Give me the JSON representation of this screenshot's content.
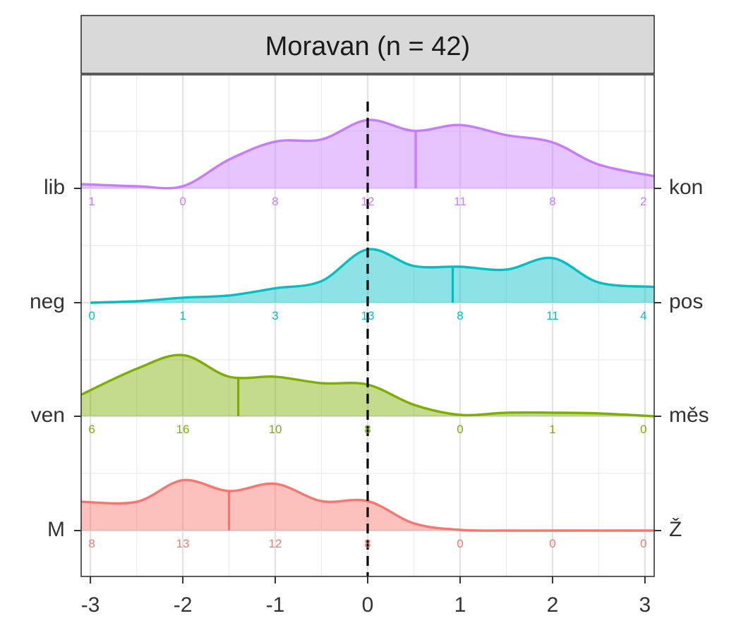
{
  "chart_data": {
    "type": "ridgeline",
    "title": "Moravan (n = 42)",
    "xlabel": "",
    "ylabel": "",
    "xlim": [
      -3.1,
      3.1
    ],
    "x_ticks": [
      "-3",
      "-2",
      "-1",
      "0",
      "1",
      "2",
      "3"
    ],
    "x_tick_values": [
      -3,
      -2,
      -1,
      0,
      1,
      2,
      3
    ],
    "reference_line_x": 0,
    "grid": true,
    "count_positions": [
      -3,
      -2,
      -1,
      0,
      1,
      2,
      3
    ],
    "series": [
      {
        "left_label": "lib",
        "right_label": "kon",
        "color": "#C77CFF",
        "counts": [
          "1",
          "0",
          "8",
          "12",
          "11",
          "8",
          "2"
        ],
        "mean": 0.52,
        "density_x": [
          -3.1,
          -2.5,
          -2.0,
          -1.5,
          -1.0,
          -0.5,
          0.0,
          0.5,
          1.0,
          1.5,
          2.0,
          2.5,
          3.1
        ],
        "density_y": [
          0.06,
          0.03,
          0.03,
          0.4,
          0.65,
          0.68,
          0.95,
          0.8,
          0.88,
          0.74,
          0.64,
          0.33,
          0.17
        ]
      },
      {
        "left_label": "neg",
        "right_label": "pos",
        "color": "#00BFC4",
        "counts": [
          "0",
          "1",
          "3",
          "13",
          "8",
          "11",
          "4"
        ],
        "mean": 0.92,
        "density_x": [
          -3.0,
          -2.5,
          -2.0,
          -1.5,
          -1.0,
          -0.5,
          0.0,
          0.5,
          1.0,
          1.5,
          2.0,
          2.5,
          3.1
        ],
        "density_y": [
          0.0,
          0.02,
          0.07,
          0.1,
          0.2,
          0.3,
          0.74,
          0.51,
          0.5,
          0.46,
          0.62,
          0.28,
          0.22
        ]
      },
      {
        "left_label": "ven",
        "right_label": "měs",
        "color": "#7CAE00",
        "counts": [
          "6",
          "16",
          "10",
          "8",
          "0",
          "1",
          "0"
        ],
        "mean": -1.4,
        "density_x": [
          -3.1,
          -2.5,
          -2.0,
          -1.5,
          -1.0,
          -0.5,
          0.0,
          0.5,
          1.0,
          1.5,
          2.0,
          2.5,
          3.1
        ],
        "density_y": [
          0.3,
          0.66,
          0.85,
          0.55,
          0.55,
          0.46,
          0.44,
          0.16,
          0.02,
          0.05,
          0.05,
          0.04,
          0.0
        ]
      },
      {
        "left_label": "M",
        "right_label": "Ž",
        "color": "#F8766D",
        "counts": [
          "8",
          "13",
          "12",
          "8",
          "0",
          "0",
          "0"
        ],
        "mean": -1.5,
        "density_x": [
          -3.1,
          -2.5,
          -2.0,
          -1.5,
          -1.0,
          -0.5,
          0.0,
          0.5,
          1.0,
          1.5,
          2.0,
          2.5,
          3.1
        ],
        "density_y": [
          0.4,
          0.4,
          0.7,
          0.55,
          0.65,
          0.41,
          0.41,
          0.1,
          0.01,
          0.0,
          0.0,
          0.0,
          0.0
        ]
      }
    ]
  }
}
